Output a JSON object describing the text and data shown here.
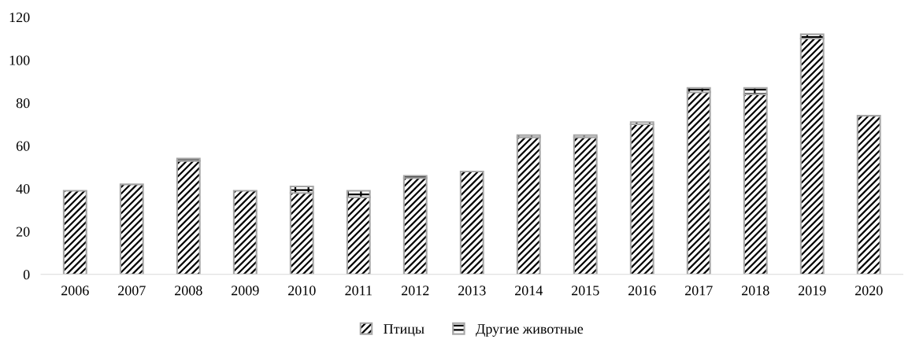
{
  "chart_data": {
    "type": "bar",
    "stacked": true,
    "categories": [
      "2006",
      "2007",
      "2008",
      "2009",
      "2010",
      "2011",
      "2012",
      "2013",
      "2014",
      "2015",
      "2016",
      "2017",
      "2018",
      "2019",
      "2020"
    ],
    "series": [
      {
        "name": "Птицы",
        "color": "#a6a6a6",
        "values": [
          39,
          42,
          53,
          39,
          38,
          36,
          45,
          48,
          64,
          64,
          70,
          85,
          84,
          110,
          74
        ]
      },
      {
        "name": "Другие животные",
        "color": "#a6a6a6",
        "values": [
          null,
          null,
          1,
          null,
          3,
          3,
          1,
          null,
          1,
          1,
          1,
          2,
          3,
          2,
          null
        ]
      }
    ],
    "ylim": [
      0,
      120
    ],
    "yticks": [
      0,
      20,
      40,
      60,
      80,
      100,
      120
    ],
    "grid": false,
    "legend": "bottom"
  }
}
